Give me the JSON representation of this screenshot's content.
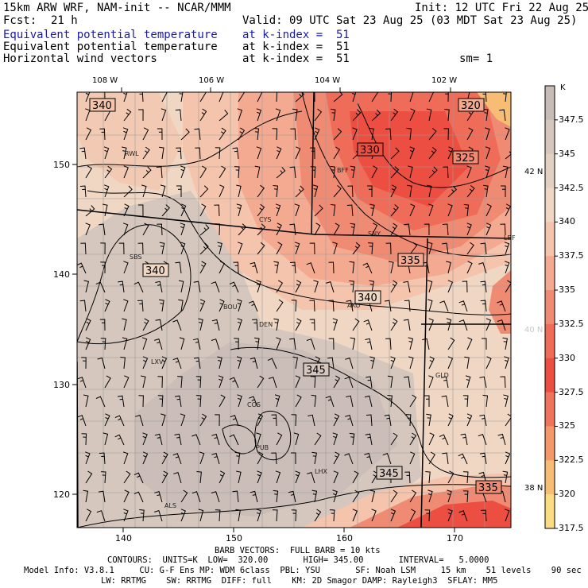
{
  "header": {
    "model": "15km ARW WRF, NAM-init -- NCAR/MMM",
    "init": "Init: 12 UTC Fri 22 Aug 25",
    "fcst_label": "Fcst:",
    "fcst_value": "21 h",
    "valid": "Valid: 09 UTC Sat 23 Aug 25 (03 MDT Sat 23 Aug 25)",
    "lines": [
      {
        "name": "Equivalent potential temperature",
        "level": "at k-index =  51",
        "extra": ""
      },
      {
        "name": "Equivalent potential temperature",
        "level": "at k-index =  51",
        "extra": ""
      },
      {
        "name": "Horizontal wind vectors",
        "level": "at k-index =  51",
        "extra": "sm= 1"
      }
    ]
  },
  "map": {
    "lon_labels": [
      "108 W",
      "106 W",
      "104 W",
      "102 W"
    ],
    "lat_labels": [
      "42 N",
      "40 N",
      "38 N"
    ],
    "x_ticks": [
      "140",
      "150",
      "160",
      "170"
    ],
    "y_ticks": [
      "150",
      "140",
      "130",
      "120"
    ],
    "stations": [
      "RWL",
      "BFF",
      "CYS",
      "SNY",
      "SBS",
      "BOU",
      "AKO",
      "DEN",
      "LXV",
      "GLD",
      "COS",
      "PUB",
      "LHX",
      "ALS",
      "LBF"
    ],
    "contour_labels": [
      "340",
      "320",
      "330",
      "325",
      "340",
      "335",
      "340",
      "345",
      "345",
      "335"
    ]
  },
  "legend": {
    "unit": "K",
    "labels": [
      "347.5",
      "345",
      "342.5",
      "340",
      "337.5",
      "335",
      "332.5",
      "330",
      "327.5",
      "325",
      "322.5",
      "320",
      "317.5"
    ],
    "colors": [
      "#c8bcb6",
      "#d5c7bd",
      "#e2d0c2",
      "#efd7c4",
      "#f4c4ad",
      "#f3aa91",
      "#f08b73",
      "#ee6c58",
      "#ec4f42",
      "#f0735e",
      "#f49868",
      "#f8bd74",
      "#fbdc83"
    ]
  },
  "footer": {
    "barb": "BARB VECTORS:  FULL BARB = 10 kts",
    "contours": "CONTOURS:  UNITS=K  LOW=  320.00       HIGH= 345.00       INTERVAL=   5.0000",
    "model_info_1": "Model Info: V3.8.1     CU: G-F Ens MP: WDM 6class  PBL: YSU       SF: Noah LSM     15 km    51 levels    90 sec",
    "model_info_2": "LW: RRTMG    SW: RRTMG  DIFF: full    KM: 2D Smagor DAMP: Rayleigh3  SFLAY: MM5"
  }
}
